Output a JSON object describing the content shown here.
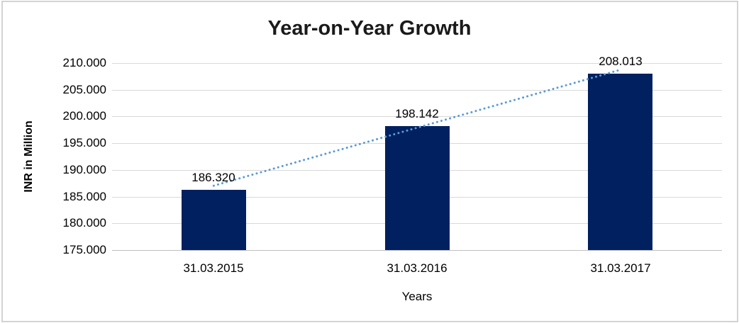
{
  "chart_data": {
    "type": "bar",
    "title": "Year-on-Year Growth",
    "xlabel": "Years",
    "ylabel": "INR in Million",
    "categories": [
      "31.03.2015",
      "31.03.2016",
      "31.03.2017"
    ],
    "series": [
      {
        "name": "INR in Million",
        "values": [
          186.32,
          198.142,
          208.013
        ],
        "value_labels": [
          "186.320",
          "198.142",
          "208.013"
        ]
      }
    ],
    "ylim": [
      175,
      210
    ],
    "yticks": [
      {
        "value": 210,
        "label": "210.000"
      },
      {
        "value": 205,
        "label": "205.000"
      },
      {
        "value": 200,
        "label": "200.000"
      },
      {
        "value": 195,
        "label": "195.000"
      },
      {
        "value": 190,
        "label": "190.000"
      },
      {
        "value": 185,
        "label": "185.000"
      },
      {
        "value": 180,
        "label": "180.000"
      },
      {
        "value": 175,
        "label": "175.000"
      }
    ],
    "grid": true,
    "legend": "none",
    "trendline": {
      "type": "linear",
      "style": "dotted"
    },
    "colors": {
      "bar": "#002060",
      "trendline": "#5B9BD5",
      "gridline": "#D9D9D9",
      "axis_line": "#BFBFBF",
      "text": "#000000",
      "title_text": "#1A1A1A",
      "frame_border": "#D4D2D2"
    }
  }
}
